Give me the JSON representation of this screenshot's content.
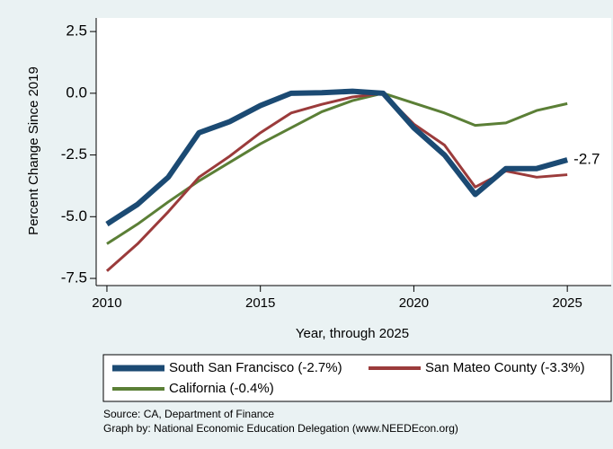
{
  "chart_data": {
    "type": "line",
    "ylabel": "Percent Change Since 2019",
    "xlabel": "Year, through 2025",
    "x": [
      2010,
      2011,
      2012,
      2013,
      2014,
      2015,
      2016,
      2017,
      2018,
      2019,
      2020,
      2021,
      2022,
      2023,
      2024,
      2025
    ],
    "series": [
      {
        "name": "South San Francisco (-2.7%)",
        "color": "#1b4a73",
        "values": [
          -5.3,
          -4.5,
          -3.4,
          -1.6,
          -1.15,
          -0.5,
          0.0,
          0.02,
          0.08,
          0.0,
          -1.4,
          -2.5,
          -4.1,
          -3.05,
          -3.05,
          -2.7
        ]
      },
      {
        "name": "San Mateo County (-3.3%)",
        "color": "#9b3b3b",
        "values": [
          -7.2,
          -6.1,
          -4.8,
          -3.4,
          -2.55,
          -1.6,
          -0.8,
          -0.45,
          -0.15,
          0.0,
          -1.25,
          -2.1,
          -3.8,
          -3.15,
          -3.4,
          -3.3
        ]
      },
      {
        "name": "California (-0.4%)",
        "color": "#5b7f36",
        "values": [
          -6.1,
          -5.3,
          -4.4,
          -3.55,
          -2.8,
          -2.05,
          -1.4,
          -0.75,
          -0.3,
          0.0,
          -0.4,
          -0.8,
          -1.3,
          -1.2,
          -0.7,
          -0.42
        ]
      }
    ],
    "annotation": "-2.7",
    "xlim": [
      2009.65,
      2026.43
    ],
    "ylim": [
      -7.79,
      3.05
    ],
    "xticks": [
      2010,
      2015,
      2020,
      2025
    ],
    "yticks": [
      2.5,
      {
        "value": 0,
        "label": "0.0"
      },
      -2.5,
      {
        "value": -5,
        "label": "-5.0"
      },
      -7.5
    ],
    "notes": [
      "Source: CA, Department of Finance",
      "Graph by: National Economic Education Delegation (www.NEEDEcon.org)"
    ]
  }
}
